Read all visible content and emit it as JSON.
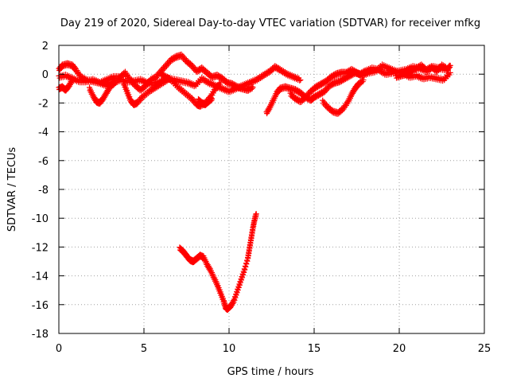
{
  "chart_data": {
    "type": "scatter",
    "title": "Day 219 of 2020, Sidereal Day-to-day VTEC variation (SDTVAR) for receiver mfkg",
    "xlabel": "GPS time / hours",
    "ylabel": "SDTVAR / TECUs",
    "xlim": [
      0,
      25
    ],
    "ylim": [
      -18,
      2
    ],
    "xticks": [
      0,
      5,
      10,
      15,
      20,
      25
    ],
    "yticks": [
      -18,
      -16,
      -14,
      -12,
      -10,
      -8,
      -6,
      -4,
      -2,
      0,
      2
    ],
    "grid": true,
    "marker": "+",
    "color": "#ff0000",
    "series": [
      {
        "name": "trace-1",
        "points": [
          [
            0.0,
            0.3
          ],
          [
            0.2,
            0.6
          ],
          [
            0.5,
            0.7
          ],
          [
            0.8,
            0.6
          ],
          [
            1.0,
            0.3
          ],
          [
            1.3,
            -0.2
          ],
          [
            1.6,
            -0.4
          ],
          [
            2.0,
            -0.5
          ],
          [
            2.4,
            -0.6
          ],
          [
            2.8,
            -0.4
          ],
          [
            3.2,
            -0.2
          ],
          [
            3.6,
            -0.2
          ],
          [
            3.9,
            0.1
          ],
          [
            4.2,
            -0.4
          ],
          [
            4.5,
            -0.8
          ],
          [
            4.8,
            -1.1
          ],
          [
            5.1,
            -0.8
          ],
          [
            5.4,
            -0.4
          ],
          [
            5.7,
            -0.2
          ],
          [
            6.0,
            0.2
          ],
          [
            6.3,
            0.6
          ],
          [
            6.6,
            1.0
          ],
          [
            6.9,
            1.2
          ],
          [
            7.2,
            1.3
          ],
          [
            7.5,
            0.9
          ],
          [
            7.8,
            0.6
          ],
          [
            8.1,
            0.2
          ],
          [
            8.4,
            0.4
          ],
          [
            8.7,
            0.1
          ],
          [
            9.0,
            -0.2
          ],
          [
            9.3,
            -0.1
          ],
          [
            9.6,
            -0.3
          ],
          [
            9.9,
            -0.6
          ],
          [
            10.2,
            -0.7
          ],
          [
            10.5,
            -0.9
          ],
          [
            10.8,
            -1.0
          ],
          [
            11.1,
            -1.1
          ],
          [
            11.4,
            -0.9
          ]
        ]
      },
      {
        "name": "trace-2",
        "points": [
          [
            0.0,
            -0.2
          ],
          [
            0.4,
            -0.1
          ],
          [
            0.8,
            -0.3
          ],
          [
            1.2,
            -0.5
          ],
          [
            1.6,
            -0.5
          ],
          [
            2.0,
            -0.4
          ],
          [
            2.4,
            -0.6
          ],
          [
            2.8,
            -0.8
          ],
          [
            3.2,
            -0.6
          ],
          [
            3.6,
            -0.4
          ],
          [
            4.0,
            -0.5
          ],
          [
            4.4,
            -0.5
          ],
          [
            4.8,
            -0.4
          ],
          [
            5.2,
            -0.6
          ],
          [
            5.6,
            -0.7
          ],
          [
            6.0,
            -0.5
          ],
          [
            6.4,
            -0.3
          ],
          [
            6.8,
            -0.4
          ],
          [
            7.2,
            -0.5
          ],
          [
            7.6,
            -0.6
          ],
          [
            8.0,
            -0.8
          ],
          [
            8.4,
            -0.3
          ],
          [
            8.8,
            -0.6
          ],
          [
            9.2,
            -0.8
          ],
          [
            9.6,
            -1.0
          ],
          [
            10.0,
            -1.2
          ],
          [
            10.4,
            -1.0
          ],
          [
            10.8,
            -0.8
          ],
          [
            11.2,
            -0.6
          ],
          [
            11.6,
            -0.4
          ],
          [
            12.0,
            -0.1
          ],
          [
            12.4,
            0.2
          ],
          [
            12.7,
            0.5
          ],
          [
            13.0,
            0.3
          ],
          [
            13.4,
            0.0
          ],
          [
            13.8,
            -0.2
          ],
          [
            14.2,
            -0.4
          ]
        ]
      },
      {
        "name": "trace-3",
        "points": [
          [
            1.8,
            -1.0
          ],
          [
            2.0,
            -1.5
          ],
          [
            2.2,
            -1.9
          ],
          [
            2.4,
            -2.0
          ],
          [
            2.6,
            -1.7
          ],
          [
            2.8,
            -1.3
          ],
          [
            3.0,
            -0.9
          ],
          [
            3.3,
            -0.6
          ]
        ]
      },
      {
        "name": "trace-4",
        "points": [
          [
            3.8,
            -0.6
          ],
          [
            4.0,
            -1.2
          ],
          [
            4.2,
            -1.8
          ],
          [
            4.4,
            -2.1
          ],
          [
            4.6,
            -2.0
          ],
          [
            4.9,
            -1.6
          ],
          [
            5.3,
            -1.2
          ],
          [
            5.7,
            -0.9
          ],
          [
            6.1,
            -0.6
          ],
          [
            6.5,
            -0.3
          ]
        ]
      },
      {
        "name": "trace-5",
        "points": [
          [
            6.0,
            0.0
          ],
          [
            6.3,
            -0.2
          ],
          [
            6.6,
            -0.4
          ],
          [
            7.0,
            -0.9
          ],
          [
            7.4,
            -1.3
          ],
          [
            7.8,
            -1.7
          ],
          [
            8.1,
            -2.1
          ],
          [
            8.3,
            -2.2
          ],
          [
            8.6,
            -2.0
          ],
          [
            8.9,
            -1.6
          ],
          [
            9.2,
            -1.0
          ],
          [
            9.5,
            -0.6
          ]
        ]
      },
      {
        "name": "trace-6",
        "points": [
          [
            8.2,
            -1.8
          ],
          [
            8.4,
            -2.0
          ],
          [
            8.6,
            -2.1
          ],
          [
            8.8,
            -1.9
          ],
          [
            9.0,
            -1.7
          ]
        ]
      },
      {
        "name": "trace-7",
        "points": [
          [
            0.0,
            -1.0
          ],
          [
            0.2,
            -0.9
          ],
          [
            0.4,
            -1.1
          ],
          [
            0.6,
            -0.8
          ],
          [
            0.8,
            -0.4
          ]
        ]
      },
      {
        "name": "trace-8",
        "points": [
          [
            12.2,
            -2.7
          ],
          [
            12.4,
            -2.3
          ],
          [
            12.6,
            -1.8
          ],
          [
            12.8,
            -1.3
          ],
          [
            13.0,
            -1.0
          ],
          [
            13.3,
            -0.9
          ],
          [
            13.6,
            -1.0
          ],
          [
            13.9,
            -1.1
          ],
          [
            14.2,
            -1.3
          ],
          [
            14.5,
            -1.6
          ],
          [
            14.8,
            -1.8
          ],
          [
            15.0,
            -1.6
          ],
          [
            15.3,
            -1.4
          ],
          [
            15.6,
            -1.2
          ],
          [
            15.9,
            -0.8
          ],
          [
            16.2,
            -0.6
          ],
          [
            16.5,
            -0.5
          ],
          [
            16.8,
            -0.3
          ],
          [
            17.1,
            -0.1
          ],
          [
            17.4,
            0.1
          ],
          [
            17.7,
            0.0
          ],
          [
            18.0,
            0.2
          ],
          [
            18.4,
            0.4
          ],
          [
            18.8,
            0.3
          ],
          [
            19.2,
            0.0
          ],
          [
            19.6,
            0.1
          ],
          [
            20.0,
            0.2
          ],
          [
            20.4,
            0.3
          ],
          [
            20.8,
            0.5
          ],
          [
            21.2,
            0.4
          ],
          [
            21.6,
            0.2
          ],
          [
            22.0,
            0.5
          ],
          [
            22.4,
            0.4
          ],
          [
            22.8,
            0.3
          ],
          [
            23.0,
            0.6
          ]
        ]
      },
      {
        "name": "trace-9",
        "points": [
          [
            13.6,
            -1.4
          ],
          [
            13.9,
            -1.7
          ],
          [
            14.2,
            -1.9
          ],
          [
            14.5,
            -1.6
          ],
          [
            14.8,
            -1.2
          ],
          [
            15.1,
            -0.9
          ],
          [
            15.4,
            -0.7
          ],
          [
            15.7,
            -0.5
          ],
          [
            16.0,
            -0.2
          ],
          [
            16.3,
            0.0
          ],
          [
            16.6,
            0.1
          ],
          [
            16.9,
            0.1
          ],
          [
            17.2,
            0.3
          ],
          [
            17.5,
            0.1
          ],
          [
            17.8,
            -0.1
          ],
          [
            18.2,
            0.1
          ],
          [
            18.6,
            0.2
          ],
          [
            19.0,
            0.6
          ],
          [
            19.4,
            0.4
          ],
          [
            19.8,
            0.2
          ],
          [
            20.2,
            0.1
          ],
          [
            20.6,
            -0.2
          ],
          [
            21.0,
            -0.1
          ],
          [
            21.4,
            -0.3
          ],
          [
            21.8,
            -0.2
          ],
          [
            22.2,
            -0.3
          ],
          [
            22.6,
            -0.4
          ],
          [
            23.0,
            0.1
          ]
        ]
      },
      {
        "name": "trace-10",
        "points": [
          [
            15.5,
            -1.9
          ],
          [
            15.8,
            -2.3
          ],
          [
            16.1,
            -2.6
          ],
          [
            16.4,
            -2.7
          ],
          [
            16.7,
            -2.4
          ],
          [
            17.0,
            -1.9
          ],
          [
            17.2,
            -1.4
          ],
          [
            17.4,
            -1.0
          ],
          [
            17.6,
            -0.7
          ],
          [
            17.9,
            -0.4
          ]
        ]
      },
      {
        "name": "trace-11",
        "points": [
          [
            19.8,
            -0.2
          ],
          [
            20.1,
            -0.1
          ],
          [
            20.4,
            0.0
          ],
          [
            20.7,
            0.2
          ],
          [
            21.0,
            0.4
          ],
          [
            21.3,
            0.6
          ],
          [
            21.6,
            0.3
          ],
          [
            21.9,
            0.5
          ],
          [
            22.2,
            0.2
          ],
          [
            22.5,
            0.6
          ],
          [
            22.8,
            0.4
          ]
        ]
      },
      {
        "name": "trace-12",
        "points": [
          [
            7.1,
            -12.1
          ],
          [
            7.3,
            -12.3
          ],
          [
            7.5,
            -12.6
          ],
          [
            7.7,
            -12.9
          ],
          [
            7.9,
            -13.0
          ],
          [
            8.1,
            -12.8
          ],
          [
            8.3,
            -12.6
          ],
          [
            8.5,
            -12.7
          ],
          [
            8.7,
            -13.2
          ],
          [
            8.9,
            -13.6
          ],
          [
            9.1,
            -14.1
          ],
          [
            9.3,
            -14.6
          ],
          [
            9.5,
            -15.2
          ],
          [
            9.7,
            -15.8
          ],
          [
            9.8,
            -16.2
          ],
          [
            9.9,
            -16.3
          ],
          [
            10.1,
            -16.1
          ],
          [
            10.3,
            -15.7
          ],
          [
            10.5,
            -15.0
          ],
          [
            10.7,
            -14.3
          ],
          [
            10.9,
            -13.6
          ],
          [
            11.1,
            -12.8
          ],
          [
            11.2,
            -12.1
          ],
          [
            11.3,
            -11.4
          ],
          [
            11.4,
            -10.7
          ],
          [
            11.5,
            -10.1
          ],
          [
            11.6,
            -9.7
          ]
        ]
      }
    ]
  }
}
